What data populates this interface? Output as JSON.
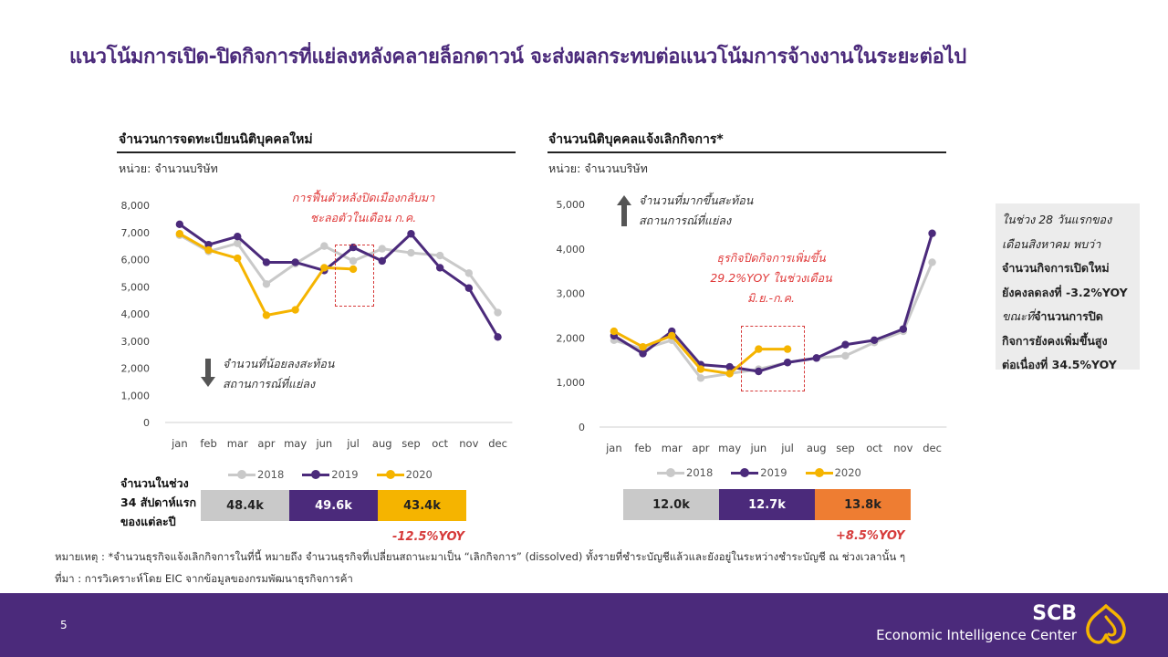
{
  "header": {
    "title": "แนวโน้มการเปิด-ปิดกิจการที่แย่ลงหลังคลายล็อกดาวน์ จะส่งผลกระทบต่อแนวโน้มการจ้างงานในระยะต่อไป"
  },
  "colors": {
    "y2018": "#c9c9c9",
    "y2019": "#4b2a7b",
    "y2020": "#f5b400",
    "orange": "#ee7d32",
    "accent": "#4b2a7b",
    "red": "#d63a3a"
  },
  "legend": {
    "y2018": "2018",
    "y2019": "2019",
    "y2020": "2020"
  },
  "left": {
    "title": "จำนวนการจดทะเบียนนิติบุคคลใหม่",
    "unit": "หน่วย: จำนวนบริษัท",
    "annotation_top": [
      "การฟื้นตัวหลังปิดเมืองกลับมา",
      "ชะลอตัวในเดือน ก.ค."
    ],
    "annotation_bottom": [
      "จำนวนที่น้อยลงสะท้อน",
      "สถานการณ์ที่แย่ลง"
    ],
    "side_label": [
      "จำนวนในช่วง",
      "34 สัปดาห์แรก",
      "ของแต่ละปี"
    ],
    "boxes": [
      "48.4k",
      "49.6k",
      "43.4k"
    ],
    "yoy": "-12.5%YOY"
  },
  "right": {
    "title": "จำนวนนิติบุคคลแจ้งเลิกกิจการ*",
    "unit": "หน่วย: จำนวนบริษัท",
    "annotation_top": [
      "จำนวนที่มากขึ้นสะท้อน",
      "สถานการณ์ที่แย่ลง"
    ],
    "annotation_mid": [
      "ธุรกิจปิดกิจการเพิ่มขึ้น",
      "29.2%YOY ในช่วงเดือน",
      "มิ.ย.-ก.ค."
    ],
    "boxes": [
      "12.0k",
      "12.7k",
      "13.8k"
    ],
    "yoy": "+8.5%YOY"
  },
  "sidebar": {
    "l1": "ในช่วง  28 วันแรกของ",
    "l2": "เดือนสิงหาคม พบว่า",
    "l3": "จำนวนกิจการเปิดใหม่",
    "l4": "ยังคงลดลงที่  -3.2%YOY",
    "l5a": "ขณะที่",
    "l5b": "จำนวนการปิด",
    "l6": "กิจการยังคงเพิ่มขึ้นสูง",
    "l7": "ต่อเนื่องที่  34.5%YOY"
  },
  "footnote": {
    "note": "หมายเหตุ : *จำนวนธุรกิจแจ้งเลิกกิจการในที่นี้ หมายถึง จำนวนธุรกิจที่เปลี่ยนสถานะมาเป็น “เลิกกิจการ” (dissolved) ทั้งรายที่ชำระบัญชีแล้วและยังอยู่ในระหว่างชำระบัญชี ณ ช่วงเวลานั้น ๆ",
    "source": "ที่มา : การวิเคราะห์โดย EIC จากข้อมูลของกรมพัฒนาธุรกิจการค้า"
  },
  "footer": {
    "page": "5",
    "brand": "SCB",
    "sub": "Economic Intelligence Center"
  },
  "chart_data": [
    {
      "type": "line",
      "title": "จำนวนการจดทะเบียนนิติบุคคลใหม่",
      "ylabel": "หน่วย: จำนวนบริษัท",
      "ylim": [
        0,
        8000
      ],
      "yticks": [
        0,
        1000,
        2000,
        3000,
        4000,
        5000,
        6000,
        7000,
        8000
      ],
      "ytick_labels": [
        "0",
        "1,000",
        "2,000",
        "3,000",
        "4,000",
        "5,000",
        "6,000",
        "7,000",
        "8,000"
      ],
      "categories": [
        "jan",
        "feb",
        "mar",
        "apr",
        "may",
        "jun",
        "jul",
        "aug",
        "sep",
        "oct",
        "nov",
        "dec"
      ],
      "series": [
        {
          "name": "2018",
          "values": [
            6900,
            6300,
            6600,
            5100,
            5850,
            6500,
            5950,
            6400,
            6250,
            6150,
            5500,
            4050
          ]
        },
        {
          "name": "2019",
          "values": [
            7300,
            6550,
            6850,
            5900,
            5900,
            5600,
            6450,
            5950,
            6950,
            5700,
            4950,
            3150
          ]
        },
        {
          "name": "2020",
          "values": [
            6950,
            6350,
            6050,
            3950,
            4150,
            5700,
            5650,
            null,
            null,
            null,
            null,
            null
          ]
        }
      ]
    },
    {
      "type": "line",
      "title": "จำนวนนิติบุคคลแจ้งเลิกกิจการ*",
      "ylabel": "หน่วย: จำนวนบริษัท",
      "ylim": [
        0,
        5000
      ],
      "yticks": [
        0,
        1000,
        2000,
        3000,
        4000,
        5000
      ],
      "ytick_labels": [
        "0",
        "1,000",
        "2,000",
        "3,000",
        "4,000",
        "5,000"
      ],
      "categories": [
        "jan",
        "feb",
        "mar",
        "apr",
        "may",
        "jun",
        "jul",
        "aug",
        "sep",
        "oct",
        "nov",
        "dec"
      ],
      "series": [
        {
          "name": "2018",
          "values": [
            1950,
            1750,
            1950,
            1100,
            1200,
            1300,
            1450,
            1550,
            1600,
            1900,
            2150,
            3700
          ]
        },
        {
          "name": "2019",
          "values": [
            2050,
            1650,
            2150,
            1400,
            1350,
            1250,
            1450,
            1550,
            1850,
            1950,
            2200,
            4350
          ]
        },
        {
          "name": "2020",
          "values": [
            2150,
            1800,
            2050,
            1300,
            1200,
            1750,
            1750,
            null,
            null,
            null,
            null,
            null
          ]
        }
      ]
    }
  ]
}
